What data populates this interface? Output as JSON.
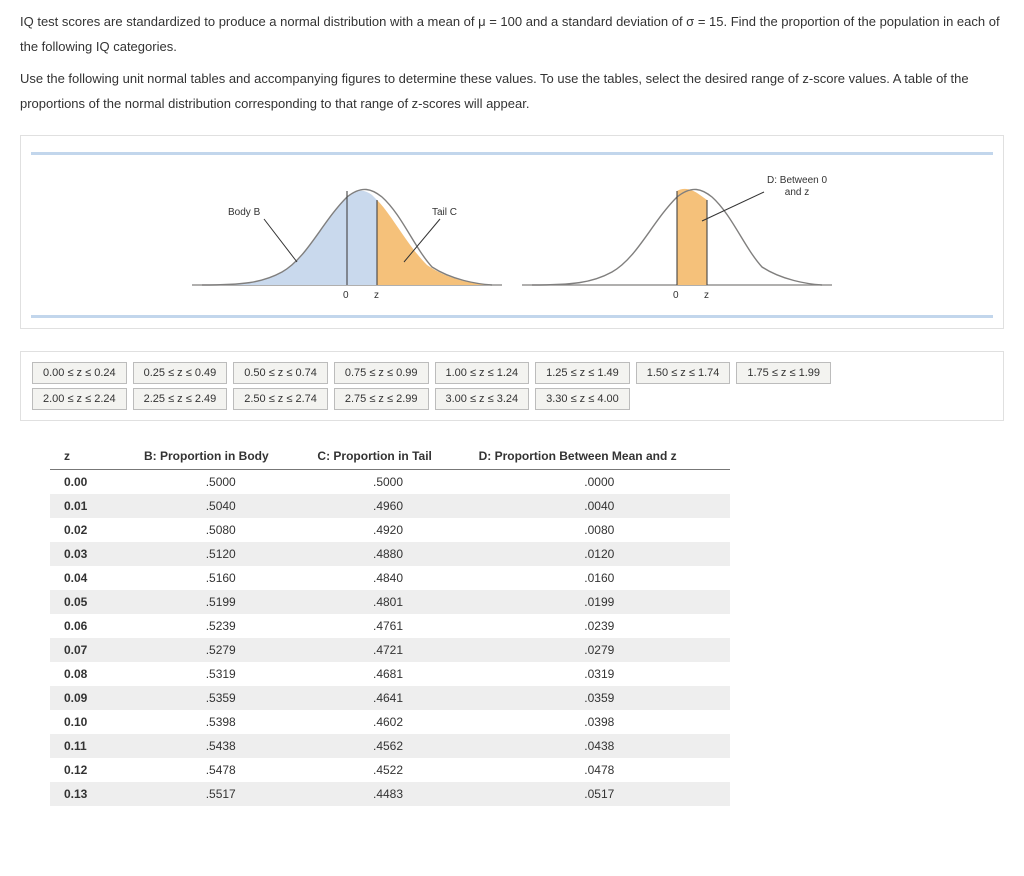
{
  "instructions": {
    "p1": "IQ test scores are standardized to produce a normal distribution with a mean of μ = 100 and a standard deviation of σ = 15. Find the proportion of the population in each of the following IQ categories.",
    "p2": "Use the following unit normal tables and accompanying figures to determine these values. To use the tables, select the desired range of z-score values. A table of the proportions of the normal distribution corresponding to that range of z-scores will appear."
  },
  "figure": {
    "left": {
      "body_fill": "#c9d9ed",
      "tail_fill": "#f5c17a",
      "stroke": "#807f7e",
      "vline_color": "#444",
      "body_label": "Body B",
      "tail_label": "Tail C",
      "axis0": "0",
      "axisz": "z"
    },
    "right": {
      "region_fill": "#f5c17a",
      "stroke": "#807f7e",
      "vline_color": "#444",
      "d_label_line1": "D: Between 0",
      "d_label_line2": "and z",
      "axis0": "0",
      "axisz": "z"
    },
    "hr_color": "#c2d6ec"
  },
  "tabs": [
    "0.00 ≤ z ≤ 0.24",
    "0.25 ≤ z ≤ 0.49",
    "0.50 ≤ z ≤ 0.74",
    "0.75 ≤ z ≤ 0.99",
    "1.00 ≤ z ≤ 1.24",
    "1.25 ≤ z ≤ 1.49",
    "1.50 ≤ z ≤ 1.74",
    "1.75 ≤ z ≤ 1.99",
    "2.00 ≤ z ≤ 2.24",
    "2.25 ≤ z ≤ 2.49",
    "2.50 ≤ z ≤ 2.74",
    "2.75 ≤ z ≤ 2.99",
    "3.00 ≤ z ≤ 3.24",
    "3.30 ≤ z ≤ 4.00"
  ],
  "table": {
    "headers": [
      "z",
      "B: Proportion in Body",
      "C: Proportion in Tail",
      "D: Proportion Between Mean and z"
    ],
    "rows": [
      [
        "0.00",
        ".5000",
        ".5000",
        ".0000"
      ],
      [
        "0.01",
        ".5040",
        ".4960",
        ".0040"
      ],
      [
        "0.02",
        ".5080",
        ".4920",
        ".0080"
      ],
      [
        "0.03",
        ".5120",
        ".4880",
        ".0120"
      ],
      [
        "0.04",
        ".5160",
        ".4840",
        ".0160"
      ],
      [
        "0.05",
        ".5199",
        ".4801",
        ".0199"
      ],
      [
        "0.06",
        ".5239",
        ".4761",
        ".0239"
      ],
      [
        "0.07",
        ".5279",
        ".4721",
        ".0279"
      ],
      [
        "0.08",
        ".5319",
        ".4681",
        ".0319"
      ],
      [
        "0.09",
        ".5359",
        ".4641",
        ".0359"
      ],
      [
        "0.10",
        ".5398",
        ".4602",
        ".0398"
      ],
      [
        "0.11",
        ".5438",
        ".4562",
        ".0438"
      ],
      [
        "0.12",
        ".5478",
        ".4522",
        ".0478"
      ],
      [
        "0.13",
        ".5517",
        ".4483",
        ".0517"
      ]
    ]
  }
}
